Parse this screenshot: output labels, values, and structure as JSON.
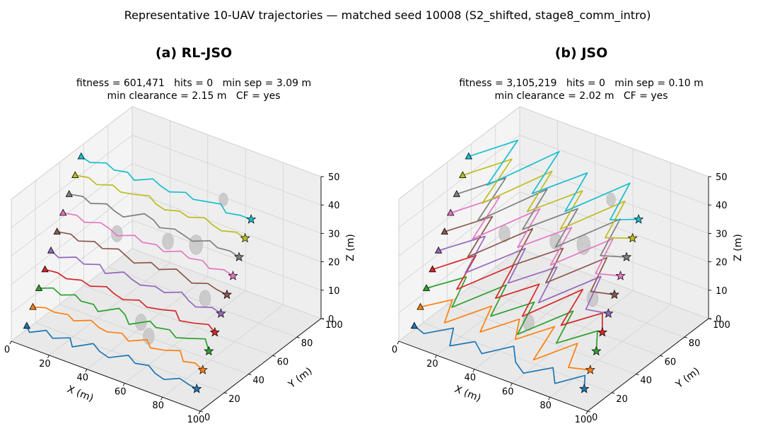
{
  "figure_title": "Representative 10-UAV trajectories — matched seed 10008 (S2_shifted, stage8_comm_intro)",
  "panels": [
    {
      "title": "(a) RL-JSO",
      "stats_line1": "fitness = 601,471   hits = 0   min sep = 3.09 m",
      "stats_line2": "min clearance = 2.15 m   CF = yes"
    },
    {
      "title": "(b) JSO",
      "stats_line1": "fitness = 3,105,219   hits = 0   min sep = 0.10 m",
      "stats_line2": "min clearance = 2.02 m   CF = yes"
    }
  ],
  "colors": [
    "#1f77b4",
    "#ff7f0e",
    "#2ca02c",
    "#d62728",
    "#9467bd",
    "#8c564b",
    "#e377c2",
    "#7f7f7f",
    "#bcbd22",
    "#17becf"
  ],
  "chart_data": [
    {
      "type": "line3d",
      "title": "(a) RL-JSO",
      "xlabel": "X (m)",
      "ylabel": "Y (m)",
      "zlabel": "Z (m)",
      "xlim": [
        0,
        100
      ],
      "ylim": [
        0,
        100
      ],
      "zlim": [
        0,
        50
      ],
      "xticks": [
        0,
        20,
        40,
        60,
        80,
        100
      ],
      "yticks": [
        0,
        20,
        40,
        60,
        80,
        100
      ],
      "zticks": [
        0,
        10,
        20,
        30,
        40,
        50
      ],
      "grid": true,
      "start_marker": "triangle",
      "goal_marker": "star",
      "obstacles": [
        [
          22,
          53,
          26,
          5
        ],
        [
          49,
          53,
          30,
          5
        ],
        [
          62,
          56,
          31,
          6
        ],
        [
          77,
          40,
          21,
          5
        ],
        [
          60,
          20,
          10,
          5
        ],
        [
          52,
          26,
          11,
          5
        ],
        [
          56,
          88,
          35,
          4
        ]
      ],
      "series": [
        {
          "z": 5,
          "x": [
            5,
            9,
            14,
            20,
            26,
            31,
            37,
            43,
            49,
            55,
            61,
            67,
            73,
            79,
            84,
            90,
            95
          ],
          "y": [
            5,
            1,
            7,
            3,
            8,
            2,
            10,
            6,
            4,
            11,
            7,
            9,
            5,
            3,
            8,
            6,
            5
          ]
        },
        {
          "z": 10,
          "x": [
            5,
            10,
            15,
            21,
            26,
            32,
            38,
            43,
            49,
            55,
            61,
            66,
            72,
            78,
            84,
            89,
            95
          ],
          "y": [
            10,
            13,
            12,
            14,
            11,
            16,
            13,
            12,
            15,
            11,
            17,
            12,
            14,
            18,
            11,
            13,
            10
          ]
        },
        {
          "z": 15,
          "x": [
            5,
            10,
            16,
            21,
            26,
            32,
            37,
            43,
            48,
            54,
            60,
            65,
            71,
            77,
            82,
            88,
            95
          ],
          "y": [
            15,
            19,
            16,
            20,
            17,
            18,
            14,
            22,
            19,
            13,
            21,
            18,
            20,
            16,
            19,
            23,
            15
          ]
        },
        {
          "z": 20,
          "x": [
            5,
            11,
            17,
            23,
            29,
            35,
            41,
            47,
            53,
            59,
            65,
            71,
            77,
            83,
            89,
            95
          ],
          "y": [
            20,
            21,
            19,
            22,
            20,
            24,
            21,
            19,
            23,
            20,
            22,
            25,
            19,
            21,
            24,
            20
          ]
        },
        {
          "z": 25,
          "x": [
            5,
            11,
            17,
            23,
            29,
            35,
            41,
            47,
            53,
            59,
            65,
            71,
            77,
            83,
            89,
            95
          ],
          "y": [
            25,
            22,
            27,
            24,
            28,
            23,
            29,
            26,
            24,
            27,
            25,
            30,
            26,
            23,
            27,
            25
          ]
        },
        {
          "z": 30,
          "x": [
            5,
            11,
            17,
            23,
            29,
            35,
            41,
            47,
            53,
            59,
            65,
            71,
            77,
            83,
            89,
            95
          ],
          "y": [
            30,
            32,
            29,
            33,
            30,
            34,
            31,
            28,
            33,
            30,
            35,
            32,
            29,
            33,
            31,
            30
          ]
        },
        {
          "z": 35,
          "x": [
            5,
            11,
            17,
            23,
            29,
            35,
            41,
            47,
            53,
            59,
            65,
            71,
            77,
            83,
            89,
            95
          ],
          "y": [
            35,
            37,
            34,
            38,
            36,
            33,
            38,
            35,
            37,
            34,
            39,
            36,
            38,
            34,
            37,
            35
          ]
        },
        {
          "z": 40,
          "x": [
            5,
            11,
            17,
            23,
            29,
            35,
            41,
            47,
            53,
            59,
            65,
            71,
            77,
            83,
            89,
            95
          ],
          "y": [
            40,
            42,
            39,
            43,
            40,
            38,
            46,
            44,
            40,
            43,
            41,
            39,
            44,
            41,
            42,
            40
          ]
        },
        {
          "z": 45,
          "x": [
            5,
            11,
            17,
            23,
            29,
            35,
            41,
            47,
            53,
            59,
            65,
            71,
            77,
            83,
            89,
            95
          ],
          "y": [
            45,
            47,
            44,
            48,
            45,
            47,
            50,
            46,
            44,
            47,
            45,
            49,
            46,
            44,
            47,
            45
          ]
        },
        {
          "z": 50,
          "x": [
            5,
            11,
            17,
            23,
            29,
            35,
            41,
            47,
            53,
            59,
            65,
            71,
            77,
            83,
            89,
            95
          ],
          "y": [
            50,
            48,
            52,
            49,
            51,
            47,
            53,
            50,
            48,
            52,
            49,
            51,
            53,
            48,
            50,
            50
          ]
        }
      ]
    },
    {
      "type": "line3d",
      "title": "(b) JSO",
      "xlabel": "X (m)",
      "ylabel": "Y (m)",
      "zlabel": "Z (m)",
      "xlim": [
        0,
        100
      ],
      "ylim": [
        0,
        100
      ],
      "zlim": [
        0,
        50
      ],
      "xticks": [
        0,
        20,
        40,
        60,
        80,
        100
      ],
      "yticks": [
        0,
        20,
        40,
        60,
        80,
        100
      ],
      "zticks": [
        0,
        10,
        20,
        30,
        40,
        50
      ],
      "grid": true,
      "start_marker": "triangle",
      "goal_marker": "star",
      "obstacles": [
        [
          22,
          53,
          26,
          5
        ],
        [
          49,
          53,
          30,
          5
        ],
        [
          62,
          56,
          31,
          6
        ],
        [
          77,
          40,
          21,
          5
        ],
        [
          52,
          26,
          11,
          5
        ],
        [
          56,
          88,
          35,
          4
        ]
      ],
      "series": [
        {
          "z": 5,
          "x": [
            5,
            12,
            20,
            27,
            34,
            42,
            50,
            58,
            66,
            74,
            82,
            89,
            95
          ],
          "y": [
            5,
            2,
            14,
            0,
            10,
            3,
            17,
            6,
            0,
            12,
            1,
            15,
            5
          ]
        },
        {
          "z": 10,
          "x": [
            5,
            13,
            21,
            30,
            38,
            46,
            54,
            62,
            70,
            78,
            86,
            95
          ],
          "y": [
            10,
            24,
            5,
            30,
            8,
            28,
            12,
            32,
            2,
            26,
            6,
            10
          ]
        },
        {
          "z": 15,
          "x": [
            5,
            14,
            23,
            32,
            41,
            50,
            59,
            68,
            77,
            86,
            95
          ],
          "y": [
            15,
            34,
            8,
            39,
            12,
            34,
            6,
            38,
            10,
            30,
            15
          ]
        },
        {
          "z": 20,
          "x": [
            5,
            14,
            23,
            32,
            41,
            50,
            59,
            68,
            77,
            86,
            95
          ],
          "y": [
            20,
            42,
            12,
            45,
            16,
            38,
            10,
            46,
            14,
            34,
            20
          ]
        },
        {
          "z": 25,
          "x": [
            5,
            15,
            25,
            35,
            45,
            55,
            65,
            75,
            85,
            95
          ],
          "y": [
            25,
            48,
            16,
            50,
            20,
            45,
            14,
            50,
            22,
            25
          ]
        },
        {
          "z": 30,
          "x": [
            5,
            15,
            25,
            35,
            45,
            55,
            65,
            75,
            85,
            95
          ],
          "y": [
            30,
            54,
            18,
            56,
            24,
            50,
            20,
            55,
            26,
            30
          ]
        },
        {
          "z": 35,
          "x": [
            5,
            15,
            25,
            35,
            45,
            55,
            65,
            75,
            85,
            95
          ],
          "y": [
            35,
            60,
            22,
            62,
            28,
            57,
            24,
            60,
            30,
            35
          ]
        },
        {
          "z": 40,
          "x": [
            5,
            15,
            25,
            35,
            45,
            55,
            65,
            75,
            85,
            95
          ],
          "y": [
            40,
            65,
            26,
            68,
            32,
            62,
            28,
            66,
            34,
            40
          ]
        },
        {
          "z": 45,
          "x": [
            5,
            15,
            25,
            35,
            45,
            55,
            65,
            75,
            85,
            95
          ],
          "y": [
            45,
            70,
            30,
            72,
            36,
            66,
            32,
            70,
            38,
            45
          ]
        },
        {
          "z": 50,
          "x": [
            5,
            15,
            25,
            35,
            45,
            55,
            65,
            75,
            85,
            95
          ],
          "y": [
            50,
            75,
            34,
            78,
            40,
            70,
            36,
            74,
            42,
            50
          ]
        }
      ]
    }
  ]
}
